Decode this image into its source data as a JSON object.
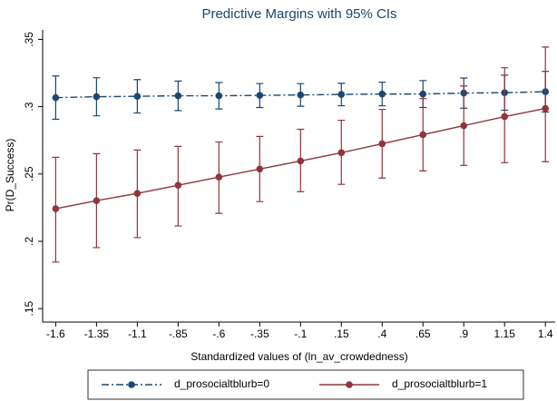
{
  "chart_data": {
    "type": "line",
    "title": "Predictive Margins with 95% CIs",
    "x_label": "Standardized values of (ln_av_crowdedness)",
    "y_label": "Pr(D_Success)",
    "x": [
      -1.6,
      -1.35,
      -1.1,
      -0.85,
      -0.6,
      -0.35,
      -0.1,
      0.15,
      0.4,
      0.65,
      0.9,
      1.15,
      1.4
    ],
    "xlim": [
      -1.68,
      1.46
    ],
    "xticks": [
      {
        "value": -1.6,
        "label": "-1.6"
      },
      {
        "value": -1.35,
        "label": "-1.35"
      },
      {
        "value": -1.1,
        "label": "-1.1"
      },
      {
        "value": -0.85,
        "label": "-.85"
      },
      {
        "value": -0.6,
        "label": "-.6"
      },
      {
        "value": -0.35,
        "label": "-.35"
      },
      {
        "value": -0.1,
        "label": "-.1"
      },
      {
        "value": 0.15,
        "label": ".15"
      },
      {
        "value": 0.4,
        "label": ".4"
      },
      {
        "value": 0.65,
        "label": ".65"
      },
      {
        "value": 0.9,
        "label": ".9"
      },
      {
        "value": 1.15,
        "label": "1.15"
      },
      {
        "value": 1.4,
        "label": "1.4"
      }
    ],
    "ylim": [
      0.14,
      0.357
    ],
    "yticks": [
      {
        "value": 0.15,
        "label": ".15"
      },
      {
        "value": 0.2,
        "label": ".2"
      },
      {
        "value": 0.25,
        "label": ".25"
      },
      {
        "value": 0.3,
        "label": ".3"
      },
      {
        "value": 0.35,
        "label": ".35"
      }
    ],
    "series": [
      {
        "name": "d_prosocialtblurb=0",
        "color": "#1a476f",
        "dash": "8 3 2 3",
        "values": [
          0.3067,
          0.3074,
          0.3077,
          0.3081,
          0.3081,
          0.3084,
          0.3087,
          0.3091,
          0.3094,
          0.3094,
          0.3101,
          0.3104,
          0.3111
        ],
        "lower": [
          0.2906,
          0.2932,
          0.2953,
          0.2971,
          0.2983,
          0.2994,
          0.3003,
          0.3007,
          0.3006,
          0.2994,
          0.2989,
          0.2974,
          0.296
        ],
        "upper": [
          0.3228,
          0.3215,
          0.3201,
          0.319,
          0.3179,
          0.3172,
          0.3171,
          0.3174,
          0.3182,
          0.3194,
          0.3213,
          0.3234,
          0.3262
        ]
      },
      {
        "name": "d_prosocialtblurb=1",
        "color": "#90353b",
        "dash": "none",
        "values": [
          0.2242,
          0.2302,
          0.2356,
          0.2416,
          0.2477,
          0.2537,
          0.2597,
          0.2658,
          0.2725,
          0.2792,
          0.2859,
          0.2926,
          0.2987
        ],
        "lower": [
          0.1846,
          0.1953,
          0.2027,
          0.2114,
          0.2208,
          0.2295,
          0.2369,
          0.2423,
          0.247,
          0.2523,
          0.2564,
          0.2584,
          0.2591
        ],
        "upper": [
          0.2624,
          0.2651,
          0.2678,
          0.2705,
          0.2738,
          0.2779,
          0.2832,
          0.2899,
          0.298,
          0.306,
          0.3154,
          0.3289,
          0.3443
        ]
      }
    ]
  }
}
